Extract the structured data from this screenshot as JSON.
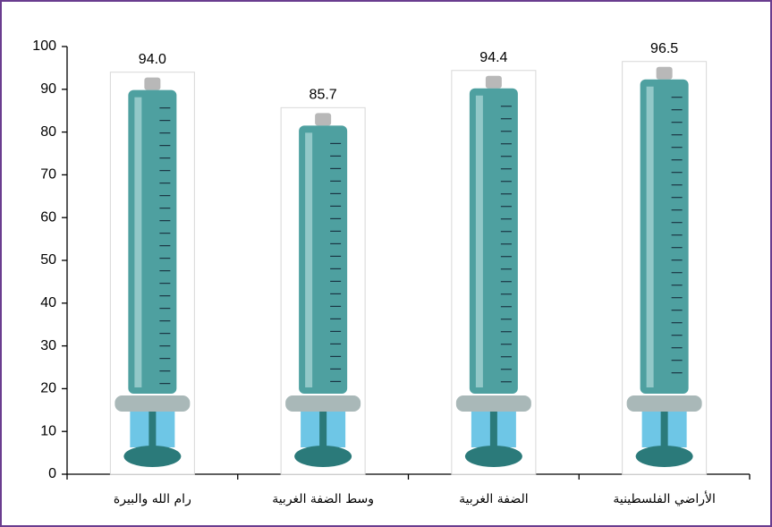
{
  "chart_data": {
    "type": "bar",
    "categories": [
      "رام الله والبيرة",
      "وسط الضفة الغربية",
      "الضفة الغربية",
      "الأراضي الفلسطينية"
    ],
    "values": [
      94.0,
      85.7,
      94.4,
      96.5
    ],
    "value_labels": [
      "94.0",
      "85.7",
      "94.4",
      "96.5"
    ],
    "color": "#2f8f8f",
    "ylim": [
      0,
      100
    ],
    "yticks": [
      0,
      10,
      20,
      30,
      40,
      50,
      60,
      70,
      80,
      90,
      100
    ],
    "grid": false
  }
}
